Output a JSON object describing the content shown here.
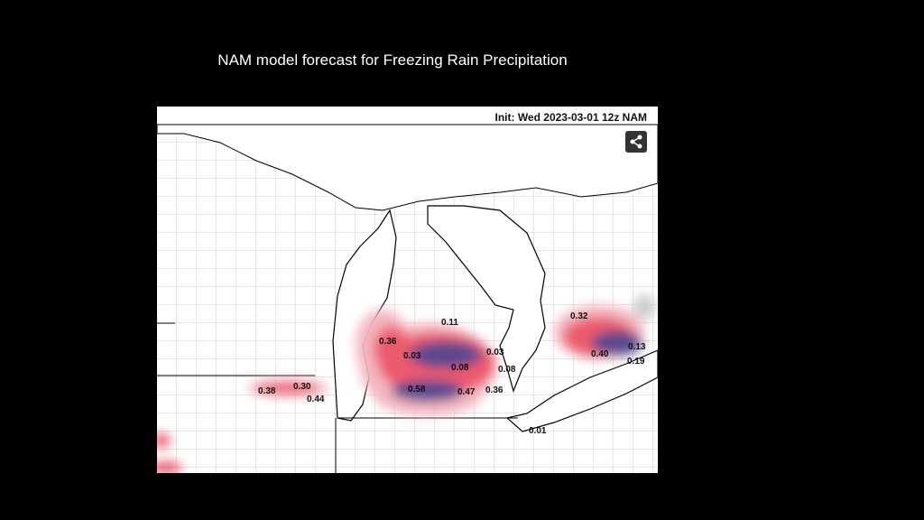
{
  "slide": {
    "title": "NAM model forecast for Freezing Rain Precipitation"
  },
  "map": {
    "init_label": "Init: Wed 2023-03-01 12z NAM",
    "share_icon": "share-icon",
    "colors": {
      "light": "#f4b6bf",
      "mid": "#ec5a6e",
      "heavy": "#5a4a8e",
      "land": "#ffffff",
      "border": "#000000"
    },
    "values": [
      {
        "text": "0.11"
      },
      {
        "text": "0.36"
      },
      {
        "text": "0.03"
      },
      {
        "text": "0.03"
      },
      {
        "text": "0.08"
      },
      {
        "text": "0.08"
      },
      {
        "text": "0.58"
      },
      {
        "text": "0.47"
      },
      {
        "text": "0.36"
      },
      {
        "text": "0.32"
      },
      {
        "text": "0.40"
      },
      {
        "text": "0.13"
      },
      {
        "text": "0.19"
      },
      {
        "text": "0.38"
      },
      {
        "text": "0.30"
      },
      {
        "text": "0.44"
      },
      {
        "text": "0.01"
      }
    ]
  }
}
